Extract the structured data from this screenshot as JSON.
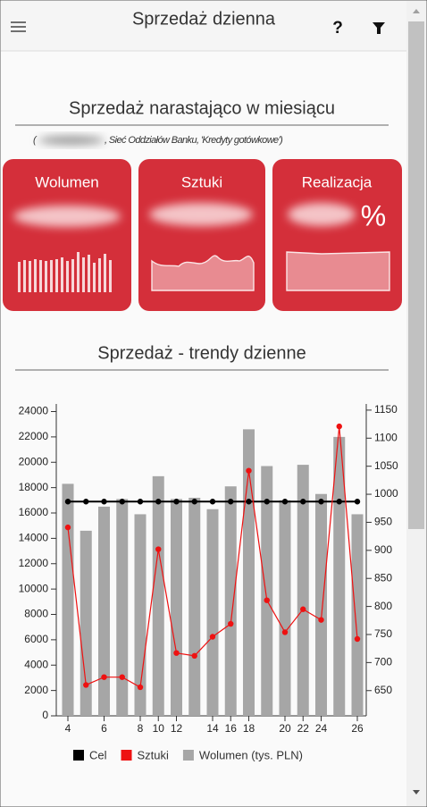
{
  "header": {
    "title": "Sprzedaż dzienna",
    "help": "?"
  },
  "summary": {
    "title": "Sprzedaż narastająco w miesiącu",
    "subtitle_open": "(",
    "subtitle_rest": ", Sieć Oddziałów Banku, 'Kredyty gotówkowe')",
    "cards": [
      {
        "title": "Wolumen"
      },
      {
        "title": "Sztuki"
      },
      {
        "title": "Realizacja",
        "suffix": "%"
      }
    ]
  },
  "chart_data": {
    "type": "combo",
    "title": "Sprzedaż - trendy dzienne",
    "categories": [
      "4",
      null,
      "6",
      null,
      "8",
      "10",
      "12",
      null,
      "14",
      "16",
      "18",
      null,
      "20",
      "22",
      "24",
      null,
      "26"
    ],
    "series": [
      {
        "name": "Cel",
        "type": "line",
        "color": "#000000",
        "values": [
          16900,
          16900,
          16900,
          16900,
          16900,
          16900,
          16900,
          16900,
          16900,
          16900,
          16900,
          16900,
          16900,
          16900,
          16900,
          16900,
          16900
        ]
      },
      {
        "name": "Sztuki",
        "type": "line",
        "color": "#ee1111",
        "axis": "y2",
        "values": [
          941,
          660,
          674,
          674,
          656,
          902,
          717,
          712,
          746,
          769,
          1042,
          811,
          754,
          795,
          776,
          1121,
          742
        ]
      },
      {
        "name": "Wolumen (tys. PLN)",
        "type": "bar",
        "color": "#a6a6a6",
        "values": [
          18300,
          14600,
          16500,
          17100,
          15900,
          18900,
          17100,
          17200,
          16300,
          18100,
          22600,
          19700,
          17000,
          19800,
          17500,
          22000,
          15900
        ]
      }
    ],
    "ylim": [
      0,
      24600
    ],
    "yticks": [
      0,
      2000,
      4000,
      6000,
      8000,
      10000,
      12000,
      14000,
      16000,
      18000,
      20000,
      22000,
      24000
    ],
    "y2lim": [
      605,
      1161
    ],
    "y2ticks": [
      650,
      700,
      750,
      800,
      850,
      900,
      950,
      1000,
      1050,
      1100,
      1150
    ],
    "legend": "bottom"
  }
}
